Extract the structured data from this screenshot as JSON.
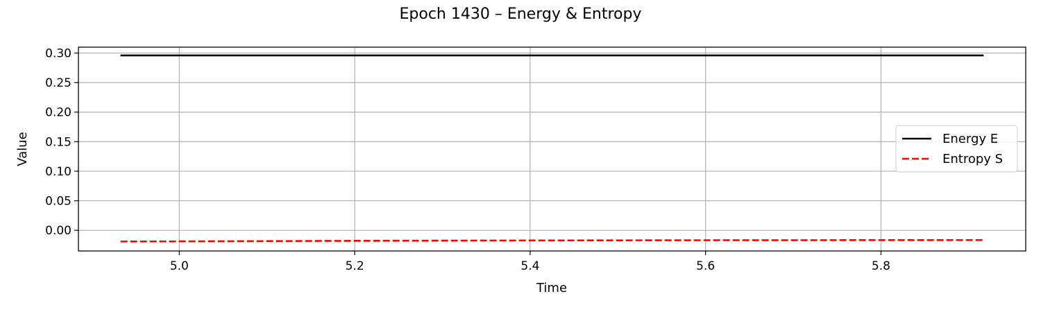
{
  "chart_data": {
    "type": "line",
    "title": "Epoch 1430 – Energy & Entropy",
    "xlabel": "Time",
    "ylabel": "Value",
    "xlim": [
      4.885,
      5.965
    ],
    "ylim": [
      -0.035,
      0.31
    ],
    "xticks": [
      5.0,
      5.2,
      5.4,
      5.6,
      5.8
    ],
    "xtick_labels": [
      "5.0",
      "5.2",
      "5.4",
      "5.6",
      "5.8"
    ],
    "yticks": [
      0.0,
      0.05,
      0.1,
      0.15,
      0.2,
      0.25,
      0.3
    ],
    "ytick_labels": [
      "0.00",
      "0.05",
      "0.10",
      "0.15",
      "0.20",
      "0.25",
      "0.30"
    ],
    "grid": true,
    "legend_position": "center-right",
    "series": [
      {
        "name": "Energy E",
        "color": "#000000",
        "style": "solid",
        "x": [
          4.933,
          5.2,
          5.4,
          5.6,
          5.8,
          5.917
        ],
        "y": [
          0.296,
          0.296,
          0.296,
          0.296,
          0.296,
          0.296
        ]
      },
      {
        "name": "Entropy S",
        "color": "#ff0000",
        "style": "dashed",
        "x": [
          4.933,
          5.2,
          5.4,
          5.6,
          5.8,
          5.917
        ],
        "y": [
          -0.019,
          -0.0178,
          -0.0172,
          -0.0168,
          -0.0166,
          -0.0165
        ]
      }
    ]
  }
}
